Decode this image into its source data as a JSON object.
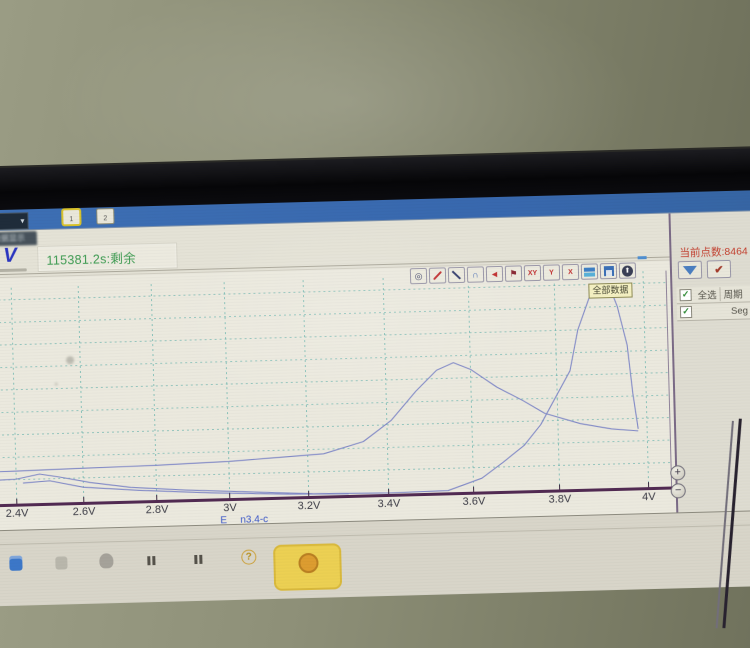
{
  "desktop": {
    "channel_button_1": "1",
    "channel_button_2": "2"
  },
  "window": {
    "tab_label": "数据显示",
    "logo": "V",
    "time_remaining": "115381.2s:剩余"
  },
  "toolbar": {
    "xy_label": "XY",
    "y_label": "Y",
    "x_label": "X",
    "all_data_tooltip": "全部数据"
  },
  "axis": {
    "ticks": [
      "2.4V",
      "2.6V",
      "2.8V",
      "3V",
      "3.2V",
      "3.4V",
      "3.6V",
      "3.8V",
      "4V"
    ],
    "xlabel": "E",
    "dataset": "n3.4-c"
  },
  "sidebar": {
    "points_count": "当前点数:8464",
    "select_all": "全选",
    "col_cycle": "周期",
    "row_seg": "Seg"
  },
  "taskbar": {
    "help": "?"
  },
  "chart_data": {
    "type": "line",
    "title": "",
    "xlabel": "E",
    "x_unit": "V",
    "x_ticks": [
      "2.4V",
      "2.6V",
      "2.8V",
      "3V",
      "3.2V",
      "3.4V",
      "3.6V",
      "3.8V",
      "4V"
    ],
    "x_range": [
      2.3,
      4.0
    ],
    "ylabel": "not visible (relative differential capacity)",
    "legend": "none",
    "grid": "teal dashed",
    "series": [
      {
        "name": "broad-peak-curve",
        "points": [
          [
            2.3,
            0.158
          ],
          [
            2.4,
            0.16
          ],
          [
            2.6,
            0.165
          ],
          [
            2.8,
            0.17
          ],
          [
            3.0,
            0.18
          ],
          [
            3.1,
            0.19
          ],
          [
            3.24,
            0.205
          ],
          [
            3.34,
            0.26
          ],
          [
            3.41,
            0.36
          ],
          [
            3.47,
            0.5
          ],
          [
            3.52,
            0.6
          ],
          [
            3.56,
            0.635
          ],
          [
            3.6,
            0.6
          ],
          [
            3.66,
            0.51
          ],
          [
            3.72,
            0.44
          ],
          [
            3.77,
            0.375
          ],
          [
            3.85,
            0.32
          ],
          [
            3.92,
            0.29
          ],
          [
            3.98,
            0.277
          ]
        ]
      },
      {
        "name": "sharp-peak-curve",
        "points": [
          [
            2.3,
            0.115
          ],
          [
            2.4,
            0.12
          ],
          [
            2.47,
            0.142
          ],
          [
            2.53,
            0.125
          ],
          [
            2.62,
            0.094
          ],
          [
            2.73,
            0.065
          ],
          [
            2.88,
            0.045
          ],
          [
            3.04,
            0.029
          ],
          [
            3.21,
            0.011
          ],
          [
            3.4,
            0.005
          ],
          [
            3.54,
            0.009
          ],
          [
            3.62,
            0.065
          ],
          [
            3.67,
            0.14
          ],
          [
            3.72,
            0.22
          ],
          [
            3.76,
            0.32
          ],
          [
            3.79,
            0.43
          ],
          [
            3.83,
            0.58
          ],
          [
            3.85,
            0.78
          ],
          [
            3.88,
            0.95
          ],
          [
            3.9,
            0.97
          ],
          [
            3.93,
            0.95
          ],
          [
            3.94,
            0.89
          ],
          [
            3.96,
            0.7
          ],
          [
            3.97,
            0.46
          ],
          [
            3.98,
            0.287
          ]
        ]
      },
      {
        "name": "low-tail-curve",
        "points": [
          [
            2.42,
            0.1
          ],
          [
            2.5,
            0.108
          ],
          [
            2.6,
            0.072
          ],
          [
            2.75,
            0.05
          ],
          [
            2.95,
            0.028
          ],
          [
            3.15,
            0.012
          ],
          [
            3.3,
            0.006
          ]
        ]
      }
    ]
  }
}
